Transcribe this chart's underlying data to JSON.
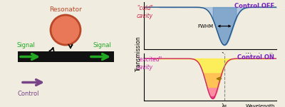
{
  "fig_width": 4.0,
  "fig_height": 1.5,
  "bg_color": "#f0ece0",
  "resonator_fill": "#e87858",
  "resonator_edge": "#b84828",
  "signal_color": "#22aa22",
  "control_color": "#774488",
  "waveguide_color": "#111111",
  "cold_label": "\"cold\"\ncavity",
  "cold_label_color": "#cc2244",
  "excited_label": "\"excited\"\ncavity",
  "excited_label_color": "#cc22aa",
  "control_off_text": "Control OFF",
  "control_on_text": "Control ON",
  "purple_text": "#7722bb",
  "fwhm_text": "FWHM",
  "transmission_text": "Transmission",
  "wavelength_text": "Wavelength",
  "lambda_s": "λs",
  "resonator_text": "Resonator",
  "signal_text": "Signal",
  "control_text": "Control"
}
